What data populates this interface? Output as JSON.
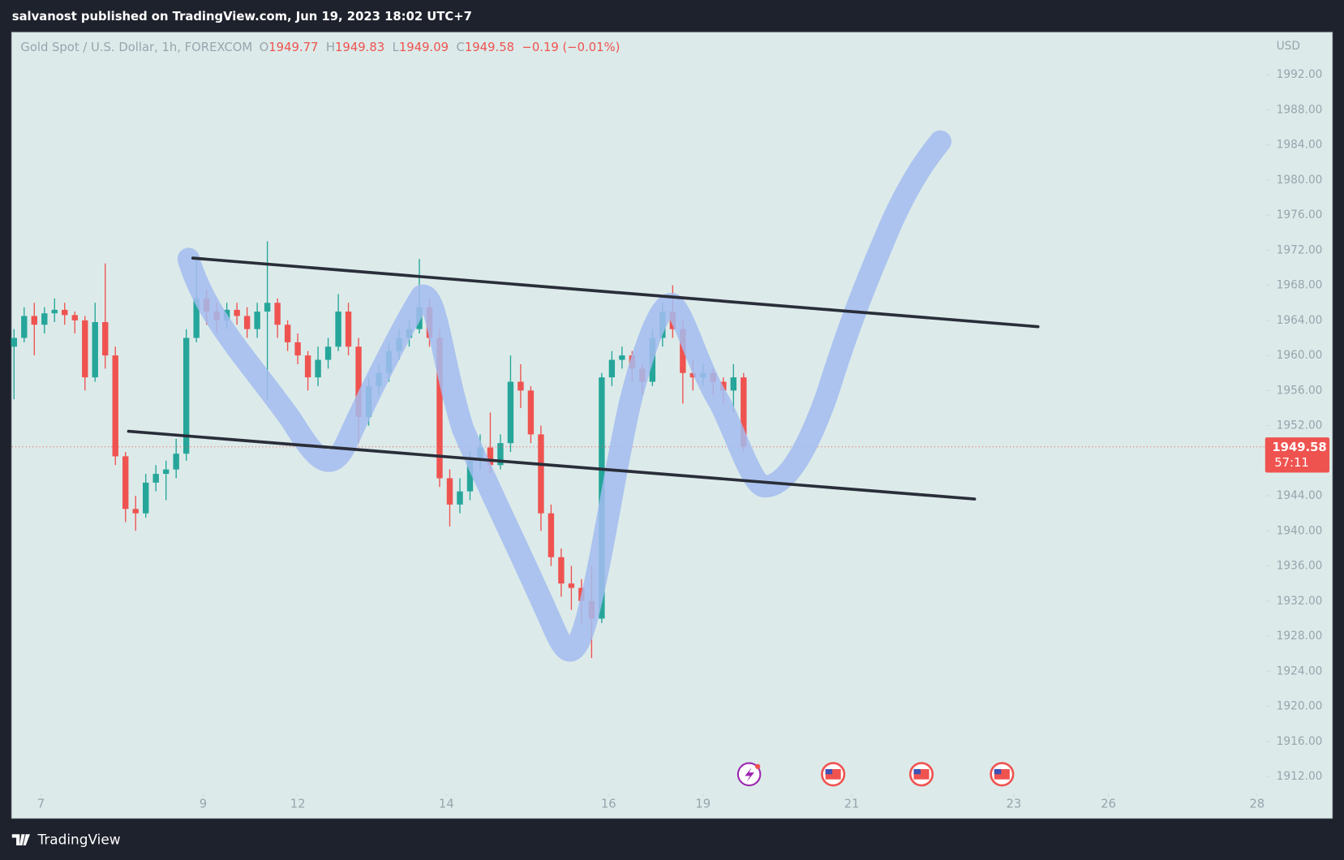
{
  "header": {
    "publisher": "salvanost published on TradingView.com, Jun 19, 2023 18:02 UTC+7"
  },
  "chart_data": {
    "type": "candlestick",
    "symbol": "Gold Spot / U.S. Dollar, 1h, FOREXCOM",
    "ohlc_legend": [
      {
        "key": "O",
        "text": "1949.77"
      },
      {
        "key": "H",
        "text": "1949.83"
      },
      {
        "key": "L",
        "text": "1949.09"
      },
      {
        "key": "C",
        "text": "1949.58"
      }
    ],
    "change": "−0.19 (−0.01%)",
    "currency": "USD",
    "x": [
      -8,
      -5,
      -2,
      1,
      4,
      7,
      10,
      13,
      16,
      19,
      22,
      25,
      28,
      31,
      34,
      37,
      40,
      43,
      46,
      49,
      52,
      55,
      58,
      61,
      64,
      67,
      70,
      73,
      76,
      79,
      82,
      85,
      88,
      91,
      94,
      97,
      100,
      103,
      106,
      109,
      112,
      115,
      118,
      121,
      124,
      127,
      130,
      133,
      136,
      139,
      142,
      145,
      148,
      151,
      154,
      157,
      160,
      163,
      166,
      169,
      172,
      175,
      178,
      181,
      184,
      187,
      190,
      193,
      196,
      199,
      202,
      205,
      208
    ],
    "open": [
      1961.0,
      1962.0,
      1964.5,
      1963.5,
      1964.8,
      1965.2,
      1964.6,
      1964.0,
      1957.5,
      1963.8,
      1960.0,
      1948.5,
      1942.5,
      1942.0,
      1945.5,
      1946.5,
      1947.0,
      1948.8,
      1962.0,
      1966.5,
      1965.0,
      1964.0,
      1965.2,
      1964.5,
      1963.0,
      1965.0,
      1966.0,
      1963.5,
      1961.5,
      1960.0,
      1957.5,
      1959.5,
      1961.0,
      1965.0,
      1961.0,
      1953.0,
      1956.5,
      1958.0,
      1960.5,
      1962.0,
      1963.0,
      1965.5,
      1962.0,
      1946.0,
      1943.0,
      1944.5,
      1948.0,
      1949.5,
      1947.5,
      1950.0,
      1957.0,
      1956.0,
      1951.0,
      1942.0,
      1937.0,
      1934.0,
      1933.5,
      1932.0,
      1930.0,
      1957.5,
      1959.5,
      1960.0,
      1958.5,
      1957.0,
      1962.0,
      1965.0,
      1963.0,
      1958.0,
      1957.5,
      1958.0,
      1957.0,
      1956.0,
      1957.5
    ],
    "high": [
      1963.0,
      1965.5,
      1966.0,
      1965.5,
      1966.5,
      1966.0,
      1965.0,
      1964.5,
      1966.0,
      1970.5,
      1961.0,
      1949.0,
      1944.0,
      1946.5,
      1947.5,
      1948.0,
      1950.5,
      1963.0,
      1971.0,
      1967.5,
      1966.0,
      1966.0,
      1966.0,
      1965.5,
      1966.0,
      1973.0,
      1966.5,
      1964.0,
      1962.5,
      1960.5,
      1961.0,
      1962.0,
      1967.0,
      1966.0,
      1962.0,
      1957.5,
      1959.0,
      1961.5,
      1963.0,
      1964.0,
      1971.0,
      1966.5,
      1963.0,
      1947.0,
      1946.0,
      1949.0,
      1951.0,
      1953.5,
      1951.0,
      1960.0,
      1959.0,
      1956.5,
      1952.0,
      1943.0,
      1938.0,
      1936.0,
      1934.5,
      1936.0,
      1958.0,
      1960.5,
      1961.0,
      1960.5,
      1959.0,
      1963.0,
      1966.0,
      1968.0,
      1964.0,
      1959.5,
      1959.0,
      1958.5,
      1957.5,
      1959.0,
      1958.0
    ],
    "low": [
      1955.0,
      1961.5,
      1960.0,
      1962.5,
      1963.8,
      1963.5,
      1962.5,
      1956.0,
      1957.0,
      1958.5,
      1947.5,
      1941.0,
      1940.0,
      1941.5,
      1944.5,
      1943.5,
      1946.0,
      1948.0,
      1961.5,
      1963.5,
      1962.5,
      1963.0,
      1963.5,
      1962.0,
      1962.0,
      1955.0,
      1962.0,
      1960.5,
      1959.0,
      1956.0,
      1956.5,
      1958.5,
      1960.5,
      1960.0,
      1950.0,
      1952.0,
      1955.5,
      1957.0,
      1959.5,
      1961.0,
      1962.5,
      1961.0,
      1945.0,
      1940.5,
      1942.0,
      1943.5,
      1947.0,
      1946.5,
      1947.0,
      1949.0,
      1954.0,
      1950.0,
      1940.0,
      1936.0,
      1932.5,
      1931.0,
      1929.5,
      1925.5,
      1929.5,
      1956.5,
      1958.5,
      1957.0,
      1955.5,
      1956.5,
      1961.0,
      1962.0,
      1954.5,
      1956.0,
      1956.5,
      1955.5,
      1954.5,
      1953.5,
      1949.09
    ],
    "close": [
      1962.0,
      1964.5,
      1963.5,
      1964.8,
      1965.2,
      1964.6,
      1964.0,
      1957.5,
      1963.8,
      1960.0,
      1948.5,
      1942.5,
      1942.0,
      1945.5,
      1946.5,
      1947.0,
      1948.8,
      1962.0,
      1966.5,
      1965.0,
      1964.0,
      1965.2,
      1964.5,
      1963.0,
      1965.0,
      1966.0,
      1963.5,
      1961.5,
      1960.0,
      1957.5,
      1959.5,
      1961.0,
      1965.0,
      1961.0,
      1953.0,
      1956.5,
      1958.0,
      1960.5,
      1962.0,
      1963.0,
      1965.5,
      1962.0,
      1946.0,
      1943.0,
      1944.5,
      1948.0,
      1949.5,
      1947.5,
      1950.0,
      1957.0,
      1956.0,
      1951.0,
      1942.0,
      1937.0,
      1934.0,
      1933.5,
      1932.0,
      1930.0,
      1957.5,
      1959.5,
      1960.0,
      1958.5,
      1957.0,
      1962.0,
      1965.0,
      1963.0,
      1958.0,
      1957.5,
      1958.0,
      1957.0,
      1956.0,
      1957.5,
      1949.58
    ],
    "up_color": "#26a69a",
    "down_color": "#ef5350",
    "xlim": [
      -8.6,
      362.4
    ],
    "xticks": [
      {
        "value": 0,
        "label": "7"
      },
      {
        "value": 48,
        "label": "9"
      },
      {
        "value": 76,
        "label": "12"
      },
      {
        "value": 120,
        "label": "14"
      },
      {
        "value": 168,
        "label": "16"
      },
      {
        "value": 196,
        "label": "19"
      },
      {
        "value": 240,
        "label": "21"
      },
      {
        "value": 288,
        "label": "23"
      },
      {
        "value": 316,
        "label": "26"
      },
      {
        "value": 360,
        "label": "28"
      }
    ],
    "ylim": [
      1910.4,
      1996.9
    ],
    "yticks": [
      {
        "value": 1912,
        "label": "1912.00"
      },
      {
        "value": 1916,
        "label": "1916.00"
      },
      {
        "value": 1920,
        "label": "1920.00"
      },
      {
        "value": 1924,
        "label": "1924.00"
      },
      {
        "value": 1928,
        "label": "1928.00"
      },
      {
        "value": 1932,
        "label": "1932.00"
      },
      {
        "value": 1936,
        "label": "1936.00"
      },
      {
        "value": 1940,
        "label": "1940.00"
      },
      {
        "value": 1944,
        "label": "1944.00"
      },
      {
        "value": 1952,
        "label": "1952.00"
      },
      {
        "value": 1956,
        "label": "1956.00"
      },
      {
        "value": 1960,
        "label": "1960.00"
      },
      {
        "value": 1964,
        "label": "1964.00"
      },
      {
        "value": 1968,
        "label": "1968.00"
      },
      {
        "value": 1972,
        "label": "1972.00"
      },
      {
        "value": 1976,
        "label": "1976.00"
      },
      {
        "value": 1980,
        "label": "1980.00"
      },
      {
        "value": 1984,
        "label": "1984.00"
      },
      {
        "value": 1988,
        "label": "1988.00"
      },
      {
        "value": 1992,
        "label": "1992.00"
      }
    ],
    "last_price": {
      "value": 1949.58,
      "label": "1949.58"
    },
    "countdown": "57:11"
  },
  "footer": {
    "brand": "TradingView"
  }
}
